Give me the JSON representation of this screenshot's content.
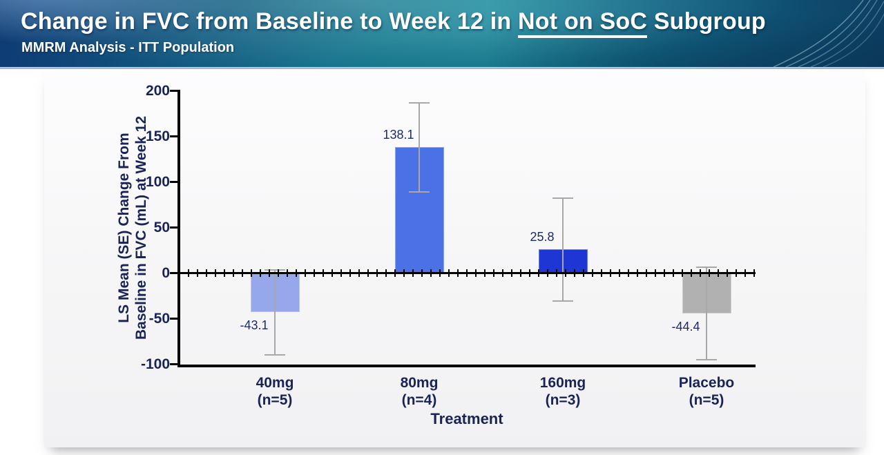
{
  "header": {
    "title_prefix": "Change in FVC from Baseline to Week 12 in ",
    "title_underline": "Not on SoC",
    "title_suffix": " Subgroup",
    "subtitle": "MMRM Analysis - ITT Population"
  },
  "chart_data": {
    "type": "bar",
    "xlabel": "Treatment",
    "ylabel_line1": "LS Mean (SE) Change From",
    "ylabel_line2": "Baseline in FVC (mL) at Week 12",
    "ylim": [
      -100,
      200
    ],
    "ytick_step": 50,
    "yticks": [
      200,
      150,
      100,
      50,
      0,
      -50,
      -100
    ],
    "grid": false,
    "legend": false,
    "categories": [
      {
        "label": "40mg",
        "n_label": "(n=5)",
        "value": -43.1,
        "value_label": "-43.1",
        "error_high": 3.4,
        "error_low": -89.6,
        "color": "#97a7eb"
      },
      {
        "label": "80mg",
        "n_label": "(n=4)",
        "value": 138.1,
        "value_label": "138.1",
        "error_high": 187.1,
        "error_low": 89.1,
        "color": "#4c70e6"
      },
      {
        "label": "160mg",
        "n_label": "(n=3)",
        "value": 25.8,
        "value_label": "25.8",
        "error_high": 82.3,
        "error_low": -30.7,
        "color": "#1e36d4"
      },
      {
        "label": "Placebo",
        "n_label": "(n=5)",
        "value": -44.4,
        "value_label": "-44.4",
        "error_high": 6.6,
        "error_low": -95.4,
        "color": "#b1b1b1"
      }
    ],
    "error_bar_color": "#a8a8a8",
    "axis_color": "#000000",
    "text_color": "#1a2355"
  }
}
